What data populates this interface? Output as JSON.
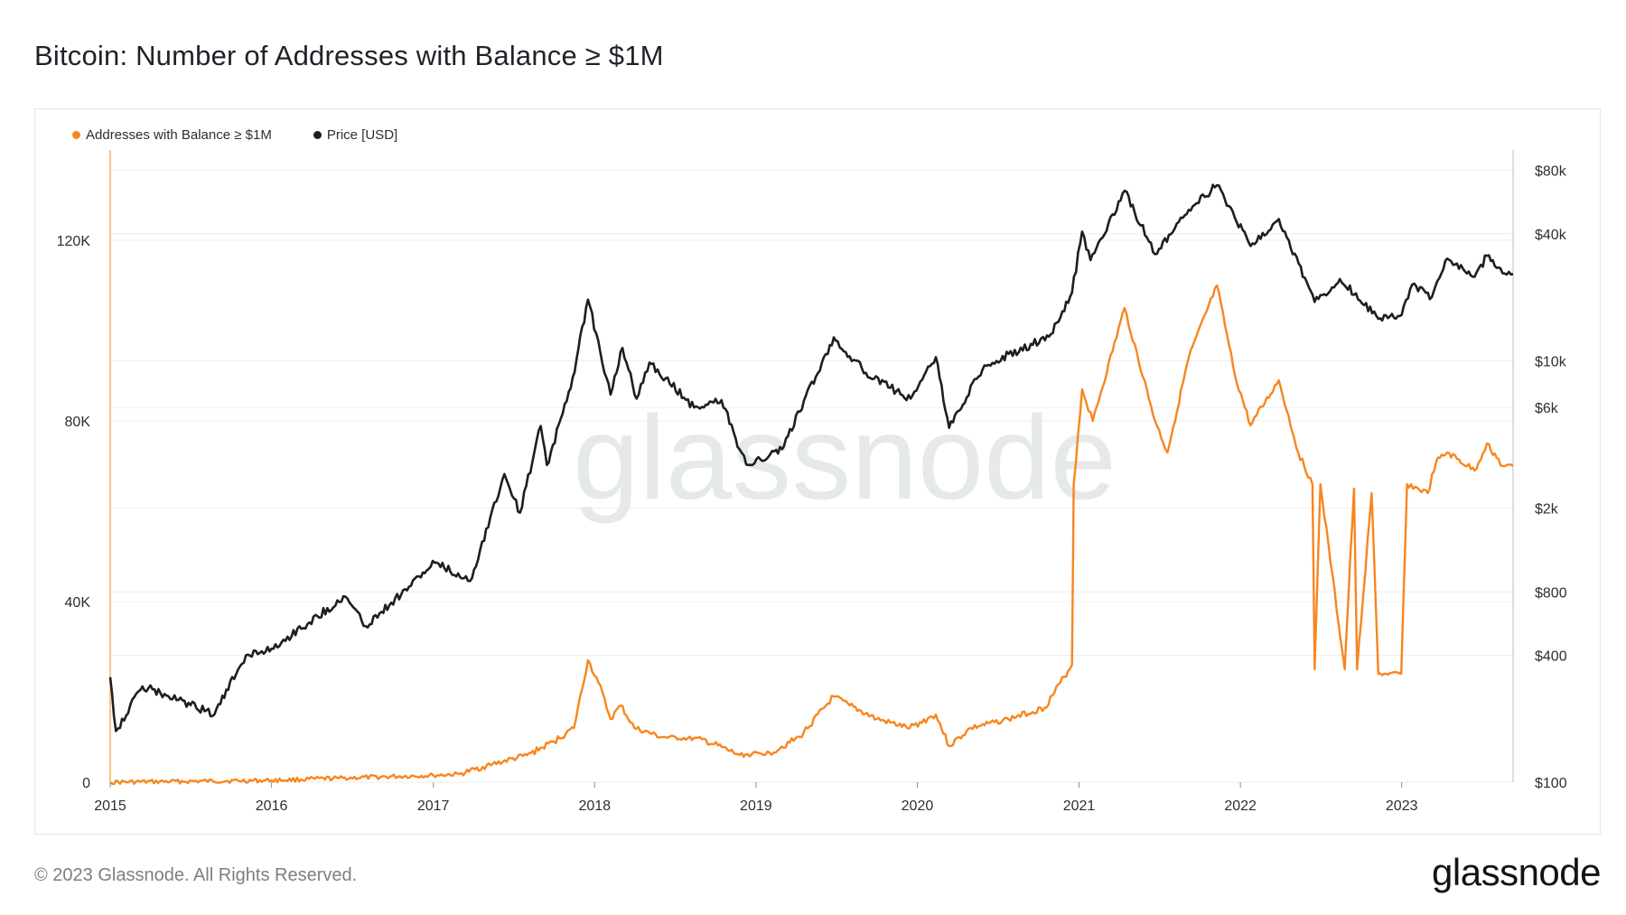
{
  "title": "Bitcoin: Number of Addresses with Balance ≥ $1M",
  "footer": "© 2023 Glassnode. All Rights Reserved.",
  "brand": "glassnode",
  "watermark": "glassnode",
  "colors": {
    "addresses": "#f7861f",
    "price": "#1b1f22",
    "grid": "#eceef0",
    "axis_text": "#2b2f33"
  },
  "chart_data": {
    "type": "line",
    "x_ticks": [
      "2015",
      "2016",
      "2017",
      "2018",
      "2019",
      "2020",
      "2021",
      "2022",
      "2023"
    ],
    "left_axis": {
      "ticks": [
        "0",
        "40K",
        "80K",
        "120K"
      ],
      "range": [
        0,
        140000
      ]
    },
    "right_axis": {
      "scale": "log",
      "ticks": [
        "$100",
        "$400",
        "$800",
        "$2k",
        "$6k",
        "$10k",
        "$40k",
        "$80k"
      ],
      "range": [
        100,
        100000
      ]
    },
    "x_range": [
      "2015-01-01",
      "2023-09-10"
    ],
    "grid": true,
    "legend_position": "top-left",
    "series": [
      {
        "name": "Addresses with Balance ≥ $1M",
        "axis": "left",
        "points": [
          [
            "2015-01-01",
            0
          ],
          [
            "2016-01-01",
            400
          ],
          [
            "2016-06-01",
            900
          ],
          [
            "2017-01-01",
            1500
          ],
          [
            "2017-03-01",
            1800
          ],
          [
            "2017-05-15",
            4000
          ],
          [
            "2017-08-01",
            6000
          ],
          [
            "2017-10-01",
            9000
          ],
          [
            "2017-11-15",
            12000
          ],
          [
            "2017-12-17",
            27000
          ],
          [
            "2018-01-10",
            22000
          ],
          [
            "2018-02-06",
            14000
          ],
          [
            "2018-03-01",
            17000
          ],
          [
            "2018-04-01",
            12000
          ],
          [
            "2018-06-01",
            10000
          ],
          [
            "2018-09-01",
            9500
          ],
          [
            "2018-11-25",
            6000
          ],
          [
            "2019-02-01",
            6500
          ],
          [
            "2019-04-10",
            10000
          ],
          [
            "2019-06-26",
            19000
          ],
          [
            "2019-08-01",
            17000
          ],
          [
            "2019-10-01",
            14000
          ],
          [
            "2019-12-15",
            12000
          ],
          [
            "2020-02-12",
            15000
          ],
          [
            "2020-03-13",
            8000
          ],
          [
            "2020-05-01",
            12000
          ],
          [
            "2020-07-25",
            14000
          ],
          [
            "2020-10-15",
            16500
          ],
          [
            "2020-12-16",
            26000
          ],
          [
            "2020-12-20",
            66000
          ],
          [
            "2021-01-08",
            87000
          ],
          [
            "2021-02-01",
            80000
          ],
          [
            "2021-04-14",
            105000
          ],
          [
            "2021-06-22",
            80000
          ],
          [
            "2021-07-20",
            73000
          ],
          [
            "2021-09-06",
            94000
          ],
          [
            "2021-11-09",
            110000
          ],
          [
            "2021-12-20",
            90000
          ],
          [
            "2022-01-24",
            79000
          ],
          [
            "2022-03-29",
            89000
          ],
          [
            "2022-05-12",
            73000
          ],
          [
            "2022-06-13",
            66000
          ],
          [
            "2022-06-18",
            25000
          ],
          [
            "2022-07-01",
            66000
          ],
          [
            "2022-08-25",
            25000
          ],
          [
            "2022-09-15",
            65000
          ],
          [
            "2022-09-22",
            25000
          ],
          [
            "2022-10-25",
            64000
          ],
          [
            "2022-11-09",
            24000
          ],
          [
            "2022-12-31",
            24000
          ],
          [
            "2023-01-13",
            66000
          ],
          [
            "2023-03-01",
            64000
          ],
          [
            "2023-03-20",
            71000
          ],
          [
            "2023-04-14",
            73000
          ],
          [
            "2023-06-15",
            69000
          ],
          [
            "2023-07-13",
            75000
          ],
          [
            "2023-08-17",
            70000
          ],
          [
            "2023-09-10",
            70000
          ]
        ]
      },
      {
        "name": "Price [USD]",
        "axis": "right",
        "points": [
          [
            "2015-01-01",
            315
          ],
          [
            "2015-01-14",
            175
          ],
          [
            "2015-03-15",
            285
          ],
          [
            "2015-08-25",
            210
          ],
          [
            "2015-11-04",
            400
          ],
          [
            "2016-01-01",
            430
          ],
          [
            "2016-06-16",
            760
          ],
          [
            "2016-08-01",
            550
          ],
          [
            "2017-01-04",
            1100
          ],
          [
            "2017-03-25",
            900
          ],
          [
            "2017-06-11",
            2900
          ],
          [
            "2017-07-16",
            1900
          ],
          [
            "2017-09-01",
            4900
          ],
          [
            "2017-09-15",
            3200
          ],
          [
            "2017-11-08",
            7400
          ],
          [
            "2017-12-17",
            19500
          ],
          [
            "2018-02-06",
            6900
          ],
          [
            "2018-03-05",
            11500
          ],
          [
            "2018-04-06",
            6600
          ],
          [
            "2018-05-05",
            9800
          ],
          [
            "2018-08-14",
            6000
          ],
          [
            "2018-10-15",
            6500
          ],
          [
            "2018-11-25",
            3800
          ],
          [
            "2018-12-15",
            3200
          ],
          [
            "2019-03-01",
            3800
          ],
          [
            "2019-06-26",
            12900
          ],
          [
            "2019-08-01",
            10500
          ],
          [
            "2019-09-25",
            8200
          ],
          [
            "2019-12-17",
            6600
          ],
          [
            "2020-02-12",
            10400
          ],
          [
            "2020-03-13",
            4800
          ],
          [
            "2020-06-01",
            9500
          ],
          [
            "2020-10-25",
            13000
          ],
          [
            "2020-12-16",
            21000
          ],
          [
            "2021-01-08",
            41000
          ],
          [
            "2021-01-27",
            30000
          ],
          [
            "2021-04-14",
            64000
          ],
          [
            "2021-06-22",
            32000
          ],
          [
            "2021-09-06",
            52000
          ],
          [
            "2021-11-09",
            68000
          ],
          [
            "2022-01-24",
            35000
          ],
          [
            "2022-03-29",
            47000
          ],
          [
            "2022-06-18",
            19000
          ],
          [
            "2022-08-14",
            24400
          ],
          [
            "2022-11-09",
            15800
          ],
          [
            "2023-01-01",
            16500
          ],
          [
            "2023-01-25",
            23000
          ],
          [
            "2023-03-10",
            20000
          ],
          [
            "2023-04-14",
            30500
          ],
          [
            "2023-06-15",
            25000
          ],
          [
            "2023-07-13",
            31500
          ],
          [
            "2023-08-17",
            26000
          ],
          [
            "2023-09-10",
            25800
          ]
        ]
      }
    ]
  }
}
